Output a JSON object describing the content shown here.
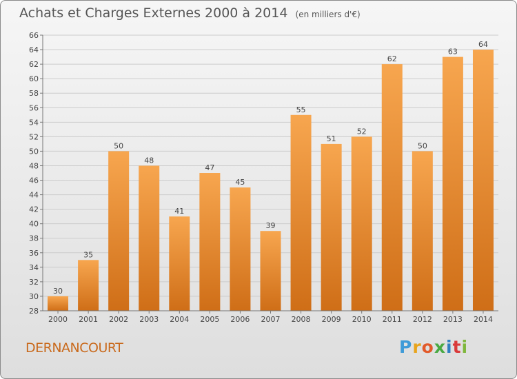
{
  "title": "Achats et Charges Externes 2000 à 2014",
  "unit": "(en milliers d'€)",
  "commune": "DERNANCOURT",
  "logo": {
    "letters": [
      "P",
      "r",
      "o",
      "x",
      "i",
      "t",
      "i"
    ],
    "colors": [
      "#3f9bd8",
      "#e8a41c",
      "#e25a2a",
      "#49a942",
      "#2f7fc1",
      "#d93a3a",
      "#7fb63b"
    ]
  },
  "colors": {
    "bar_top": "#f7a64f",
    "bar_bottom": "#cf6e17",
    "grid": "#cccccc",
    "title": "#555555",
    "commune": "#c96a1d"
  },
  "chart_data": {
    "type": "bar",
    "title": "Achats et Charges Externes 2000 à 2014",
    "subtitle": "(en milliers d'€)",
    "categories": [
      "2000",
      "2001",
      "2002",
      "2003",
      "2004",
      "2005",
      "2006",
      "2007",
      "2008",
      "2009",
      "2010",
      "2011",
      "2012",
      "2013",
      "2014"
    ],
    "values": [
      30,
      35,
      50,
      48,
      41,
      47,
      45,
      39,
      55,
      51,
      52,
      62,
      50,
      63,
      64
    ],
    "ylim": [
      28,
      66
    ],
    "ytick_step": 2,
    "grid": true,
    "data_labels": true
  }
}
